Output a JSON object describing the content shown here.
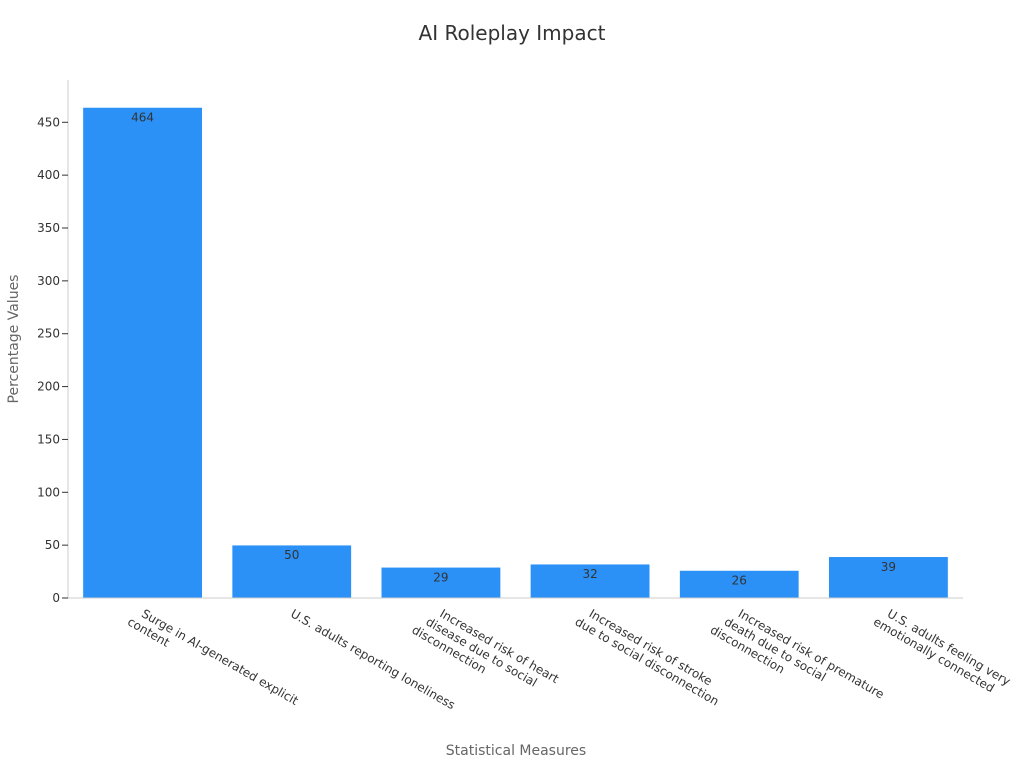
{
  "chart_data": {
    "type": "bar",
    "title": "AI Roleplay Impact",
    "xlabel": "Statistical Measures",
    "ylabel": "Percentage Values",
    "categories": [
      "Surge in AI-generated explicit content",
      "U.S. adults reporting loneliness",
      "Increased risk of heart disease due to social disconnection",
      "Increased risk of stroke due to social disconnection",
      "Increased risk of premature death due to social disconnection",
      "U.S. adults feeling very emotionally connected"
    ],
    "category_label_lines": [
      [
        "Surge in AI-generated explicit",
        "content"
      ],
      [
        "U.S. adults reporting loneliness"
      ],
      [
        "Increased risk of heart",
        "disease due to social",
        "disconnection"
      ],
      [
        "Increased risk of stroke",
        "due to social disconnection"
      ],
      [
        "Increased risk of premature",
        "death due to social",
        "disconnection"
      ],
      [
        "U.S. adults feeling very",
        "emotionally connected"
      ]
    ],
    "values": [
      464,
      50,
      29,
      32,
      26,
      39
    ],
    "data_labels": [
      "464",
      "50",
      "29",
      "32",
      "26",
      "39"
    ],
    "yticks": [
      0,
      50,
      100,
      150,
      200,
      250,
      300,
      350,
      400,
      450
    ],
    "ylim": [
      0,
      490
    ],
    "bar_color": "#2b91f7",
    "grid": false,
    "legend": "none"
  }
}
